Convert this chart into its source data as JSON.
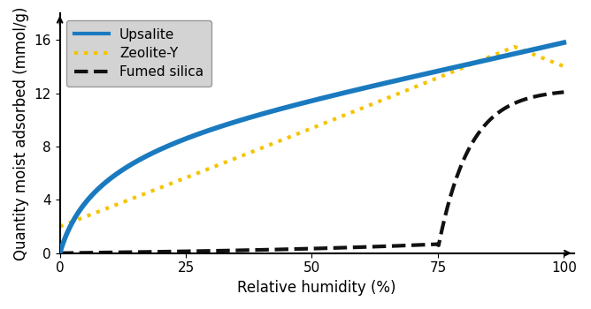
{
  "title": "",
  "xlabel": "Relative humidity (%)",
  "ylabel": "Quantity moist adsorbed (mmol/g)",
  "xlim": [
    0,
    102
  ],
  "ylim": [
    0,
    18
  ],
  "yticks": [
    0,
    4,
    8,
    12,
    16
  ],
  "xticks": [
    0,
    25,
    50,
    75,
    100
  ],
  "upsalite_color": "#1a7abf",
  "zeolite_color": "#f5c400",
  "fumed_color": "#111111",
  "legend_labels": [
    "Upsalite",
    "Zeolite-Y",
    "Fumed silica"
  ],
  "background_color": "#ffffff"
}
